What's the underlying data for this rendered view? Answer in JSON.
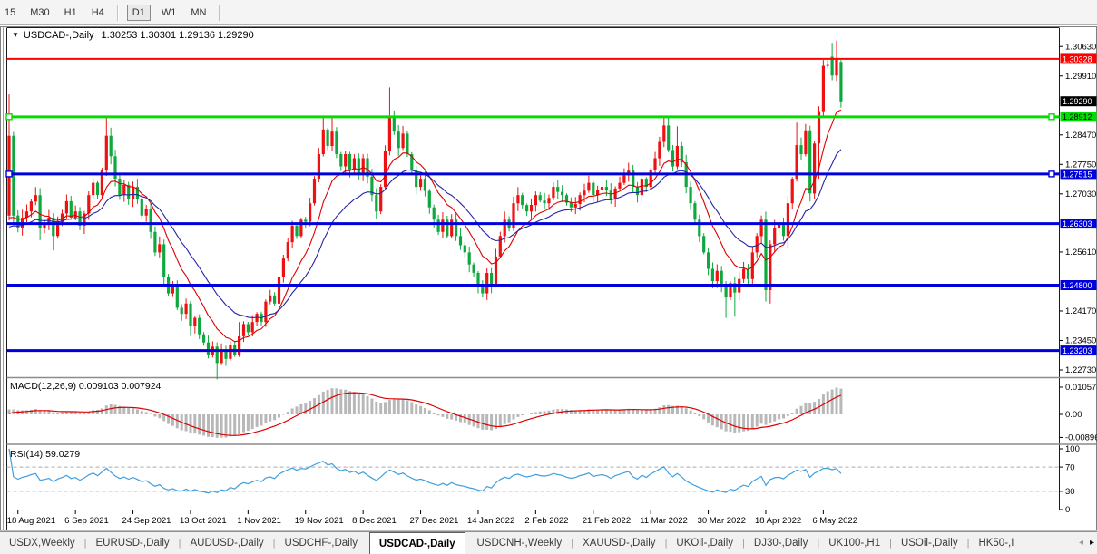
{
  "toolbar": {
    "timeframes": [
      {
        "label": "15",
        "active": false
      },
      {
        "label": "M30",
        "active": false
      },
      {
        "label": "H1",
        "active": false
      },
      {
        "label": "H4",
        "active": false
      },
      {
        "label": "D1",
        "active": true
      },
      {
        "label": "W1",
        "active": false
      },
      {
        "label": "MN",
        "active": false
      }
    ],
    "separators_after": [
      3,
      6
    ]
  },
  "window": {
    "collapse_glyph": "▼",
    "symbol_title": "USDCAD-,Daily",
    "ohlc_text": "1.30253 1.30301 1.29136 1.29290"
  },
  "chart_data": {
    "type": "candlestick",
    "symbol": "USDCAD-",
    "timeframe": "Daily",
    "last_candle": {
      "open": 1.30253,
      "high": 1.30301,
      "low": 1.29136,
      "close": 1.2929
    },
    "current_price": 1.2929,
    "num_candles": 189,
    "first_open": 1.265,
    "prehistory_price": 1.26,
    "colors": {
      "bull": "#ee1111",
      "bear": "#0fa83f",
      "ma_fast": "#dd0000",
      "ma_slow": "#2525a8",
      "level_red": "#ff0000",
      "level_green": "#00dd00",
      "level_blue": "#0000dd",
      "macd_hist": "#b8b8b8",
      "macd_signal": "#dd0000",
      "rsi_line": "#3f9fdf",
      "rsi_dash": "#ababab",
      "current_badge_bg": "#000000"
    },
    "y_axis": {
      "ticks": [
        "1.30630",
        "1.29910",
        "1.28470",
        "1.27750",
        "1.27030",
        "1.25610",
        "1.24170",
        "1.23450",
        "1.22730"
      ],
      "range_top": 1.31078,
      "range_bottom": 1.22575
    },
    "levels": [
      {
        "price": 1.30328,
        "label": "1.30328",
        "color": "#ff0000",
        "width": 2,
        "badge_bg": "#ff0000",
        "badge_fg": "#ffffff",
        "handles": false
      },
      {
        "price": 1.28912,
        "label": "1.28912",
        "color": "#00dd00",
        "width": 3,
        "badge_bg": "#00dd00",
        "badge_fg": "#000000",
        "handles": true
      },
      {
        "price": 1.27515,
        "label": "1.27515",
        "color": "#0000dd",
        "width": 3,
        "badge_bg": "#0000dd",
        "badge_fg": "#ffffff",
        "handles": true
      },
      {
        "price": 1.26303,
        "label": "1.26303",
        "color": "#0000dd",
        "width": 3,
        "badge_bg": "#0000dd",
        "badge_fg": "#ffffff",
        "handles": false
      },
      {
        "price": 1.248,
        "label": "1.24800",
        "color": "#0000dd",
        "width": 3,
        "badge_bg": "#0000dd",
        "badge_fg": "#ffffff",
        "handles": false
      },
      {
        "price": 1.23203,
        "label": "1.23203",
        "color": "#0000dd",
        "width": 3,
        "badge_bg": "#0000dd",
        "badge_fg": "#ffffff",
        "handles": false
      }
    ],
    "current_price_label": "1.29290",
    "x_axis": {
      "labels": [
        "18 Aug 2021",
        "6 Sep 2021",
        "24 Sep 2021",
        "13 Oct 2021",
        "1 Nov 2021",
        "19 Nov 2021",
        "8 Dec 2021",
        "27 Dec 2021",
        "14 Jan 2022",
        "2 Feb 2022",
        "21 Feb 2022",
        "11 Mar 2022",
        "30 Mar 2022",
        "18 Apr 2022",
        "6 May 2022"
      ],
      "tick_days": [
        2,
        15,
        28,
        41,
        54,
        67,
        80,
        93,
        106,
        119,
        132,
        145,
        158,
        171,
        184
      ]
    },
    "price_anchors": [
      [
        0,
        1.2845
      ],
      [
        1,
        1.265
      ],
      [
        2,
        1.262
      ],
      [
        4,
        1.266
      ],
      [
        6,
        1.27
      ],
      [
        7,
        1.262
      ],
      [
        9,
        1.2645
      ],
      [
        10,
        1.26
      ],
      [
        12,
        1.2655
      ],
      [
        13,
        1.2685
      ],
      [
        14,
        1.2645
      ],
      [
        15,
        1.266
      ],
      [
        16,
        1.2625
      ],
      [
        17,
        1.2655
      ],
      [
        18,
        1.27
      ],
      [
        19,
        1.273
      ],
      [
        20,
        1.27
      ],
      [
        21,
        1.276
      ],
      [
        22,
        1.2845
      ],
      [
        23,
        1.2795
      ],
      [
        24,
        1.274
      ],
      [
        25,
        1.27
      ],
      [
        26,
        1.2725
      ],
      [
        27,
        1.269
      ],
      [
        28,
        1.272
      ],
      [
        29,
        1.269
      ],
      [
        30,
        1.265
      ],
      [
        31,
        1.2665
      ],
      [
        32,
        1.261
      ],
      [
        33,
        1.256
      ],
      [
        34,
        1.258
      ],
      [
        35,
        1.25
      ],
      [
        36,
        1.246
      ],
      [
        37,
        1.2475
      ],
      [
        38,
        1.2425
      ],
      [
        39,
        1.241
      ],
      [
        40,
        1.2435
      ],
      [
        41,
        1.238
      ],
      [
        42,
        1.24
      ],
      [
        43,
        1.236
      ],
      [
        44,
        1.234
      ],
      [
        45,
        1.231
      ],
      [
        46,
        1.233
      ],
      [
        47,
        1.229
      ],
      [
        48,
        1.232
      ],
      [
        49,
        1.23
      ],
      [
        50,
        1.2335
      ],
      [
        51,
        1.231
      ],
      [
        52,
        1.2355
      ],
      [
        53,
        1.2385
      ],
      [
        54,
        1.2365
      ],
      [
        55,
        1.239
      ],
      [
        56,
        1.241
      ],
      [
        57,
        1.239
      ],
      [
        58,
        1.244
      ],
      [
        59,
        1.2455
      ],
      [
        60,
        1.2435
      ],
      [
        61,
        1.25
      ],
      [
        62,
        1.2545
      ],
      [
        63,
        1.2585
      ],
      [
        64,
        1.2625
      ],
      [
        65,
        1.26
      ],
      [
        66,
        1.264
      ],
      [
        67,
        1.2635
      ],
      [
        68,
        1.268
      ],
      [
        69,
        1.274
      ],
      [
        70,
        1.28
      ],
      [
        71,
        1.286
      ],
      [
        72,
        1.282
      ],
      [
        73,
        1.2855
      ],
      [
        74,
        1.28
      ],
      [
        75,
        1.277
      ],
      [
        76,
        1.28
      ],
      [
        77,
        1.276
      ],
      [
        78,
        1.279
      ],
      [
        79,
        1.275
      ],
      [
        80,
        1.279
      ],
      [
        81,
        1.2745
      ],
      [
        82,
        1.27
      ],
      [
        83,
        1.266
      ],
      [
        84,
        1.272
      ],
      [
        86,
        1.289
      ],
      [
        87,
        1.2855
      ],
      [
        88,
        1.2815
      ],
      [
        89,
        1.285
      ],
      [
        90,
        1.28
      ],
      [
        91,
        1.276
      ],
      [
        92,
        1.272
      ],
      [
        93,
        1.274
      ],
      [
        94,
        1.271
      ],
      [
        95,
        1.267
      ],
      [
        96,
        1.264
      ],
      [
        97,
        1.261
      ],
      [
        98,
        1.264
      ],
      [
        99,
        1.26
      ],
      [
        100,
        1.264
      ],
      [
        101,
        1.26
      ],
      [
        103,
        1.256
      ],
      [
        105,
        1.251
      ],
      [
        106,
        1.248
      ],
      [
        107,
        1.246
      ],
      [
        108,
        1.251
      ],
      [
        109,
        1.248
      ],
      [
        110,
        1.255
      ],
      [
        111,
        1.26
      ],
      [
        112,
        1.264
      ],
      [
        113,
        1.262
      ],
      [
        114,
        1.268
      ],
      [
        115,
        1.27
      ],
      [
        117,
        1.266
      ],
      [
        119,
        1.27
      ],
      [
        121,
        1.268
      ],
      [
        123,
        1.272
      ],
      [
        125,
        1.27
      ],
      [
        127,
        1.267
      ],
      [
        129,
        1.27
      ],
      [
        131,
        1.273
      ],
      [
        132,
        1.27
      ],
      [
        134,
        1.272
      ],
      [
        136,
        1.269
      ],
      [
        138,
        1.273
      ],
      [
        140,
        1.276
      ],
      [
        141,
        1.272
      ],
      [
        142,
        1.27
      ],
      [
        143,
        1.274
      ],
      [
        144,
        1.272
      ],
      [
        145,
        1.276
      ],
      [
        146,
        1.279
      ],
      [
        147,
        1.283
      ],
      [
        148,
        1.287
      ],
      [
        149,
        1.281
      ],
      [
        150,
        1.277
      ],
      [
        151,
        1.282
      ],
      [
        152,
        1.278
      ],
      [
        153,
        1.272
      ],
      [
        154,
        1.268
      ],
      [
        155,
        1.264
      ],
      [
        156,
        1.26
      ],
      [
        157,
        1.256
      ],
      [
        158,
        1.252
      ],
      [
        159,
        1.249
      ],
      [
        160,
        1.2515
      ],
      [
        161,
        1.2475
      ],
      [
        162,
        1.245
      ],
      [
        163,
        1.2485
      ],
      [
        164,
        1.2462
      ],
      [
        165,
        1.2495
      ],
      [
        166,
        1.252
      ],
      [
        167,
        1.2495
      ],
      [
        168,
        1.256
      ],
      [
        169,
        1.26
      ],
      [
        170,
        1.264
      ],
      [
        171,
        1.2468
      ],
      [
        172,
        1.258
      ],
      [
        173,
        1.262
      ],
      [
        174,
        1.263
      ],
      [
        175,
        1.26
      ],
      [
        176,
        1.268
      ],
      [
        177,
        1.274
      ],
      [
        178,
        1.2822
      ],
      [
        179,
        1.28
      ],
      [
        180,
        1.2858
      ],
      [
        181,
        1.2704
      ],
      [
        182,
        1.2826
      ],
      [
        183,
        1.2905
      ],
      [
        184,
        1.3016
      ],
      [
        185,
        1.3018
      ],
      [
        186,
        1.2992
      ],
      [
        187,
        1.3032
      ],
      [
        188,
        1.2929
      ]
    ],
    "wick_overrides": [
      [
        0,
        1.2946,
        1.2638
      ],
      [
        7,
        null,
        1.259
      ],
      [
        10,
        null,
        1.2565
      ],
      [
        22,
        1.2893,
        null
      ],
      [
        35,
        null,
        1.248
      ],
      [
        41,
        null,
        1.2356
      ],
      [
        47,
        null,
        1.225
      ],
      [
        52,
        1.239,
        null
      ],
      [
        71,
        1.2891,
        null
      ],
      [
        73,
        1.289,
        null
      ],
      [
        86,
        1.2963,
        null
      ],
      [
        107,
        null,
        1.245
      ],
      [
        148,
        1.289,
        null
      ],
      [
        151,
        1.2868,
        null
      ],
      [
        162,
        null,
        1.24
      ],
      [
        164,
        null,
        1.2403
      ],
      [
        171,
        null,
        1.244
      ],
      [
        172,
        null,
        1.2435
      ],
      [
        176,
        null,
        1.257
      ],
      [
        178,
        1.2877,
        null
      ],
      [
        183,
        1.2917,
        1.274
      ],
      [
        184,
        1.303,
        null
      ],
      [
        186,
        1.3072,
        null
      ],
      [
        187,
        1.3077,
        null
      ],
      [
        188,
        1.30301,
        1.29136
      ]
    ],
    "open_overrides": {
      "186": 1.3038,
      "188": 1.30253
    },
    "indicators": {
      "ma_fast": {
        "type": "EMA",
        "period": 10
      },
      "ma_slow": {
        "type": "EMA",
        "period": 21
      },
      "macd": {
        "label": "MACD(12,26,9)",
        "values_text": "0.009103 0.007924",
        "params": [
          12,
          26,
          9
        ],
        "axis_labels": [
          "0.010578",
          "0.00",
          "-0.00896"
        ]
      },
      "rsi": {
        "label": "RSI(14)",
        "value_text": "59.0279",
        "params": [
          14
        ],
        "axis_labels": [
          "100",
          "70",
          "30",
          "0"
        ],
        "level_lines": [
          70,
          30
        ]
      }
    }
  },
  "tabbar": {
    "separator": "|",
    "tabs": [
      {
        "label": "USDX,Weekly"
      },
      {
        "label": "EURUSD-,Daily"
      },
      {
        "label": "AUDUSD-,Daily"
      },
      {
        "label": "USDCHF-,Daily"
      },
      {
        "label": "USDCAD-,Daily"
      },
      {
        "label": "USDCNH-,Weekly"
      },
      {
        "label": "XAUUSD-,Daily"
      },
      {
        "label": "UKOil-,Daily"
      },
      {
        "label": "DJ30-,Daily"
      },
      {
        "label": "UK100-,H1"
      },
      {
        "label": "USOil-,Daily"
      },
      {
        "label": "HK50-,I"
      }
    ],
    "active_index": 4,
    "scroll_left_glyph": "◂",
    "scroll_right_glyph": "▸"
  }
}
